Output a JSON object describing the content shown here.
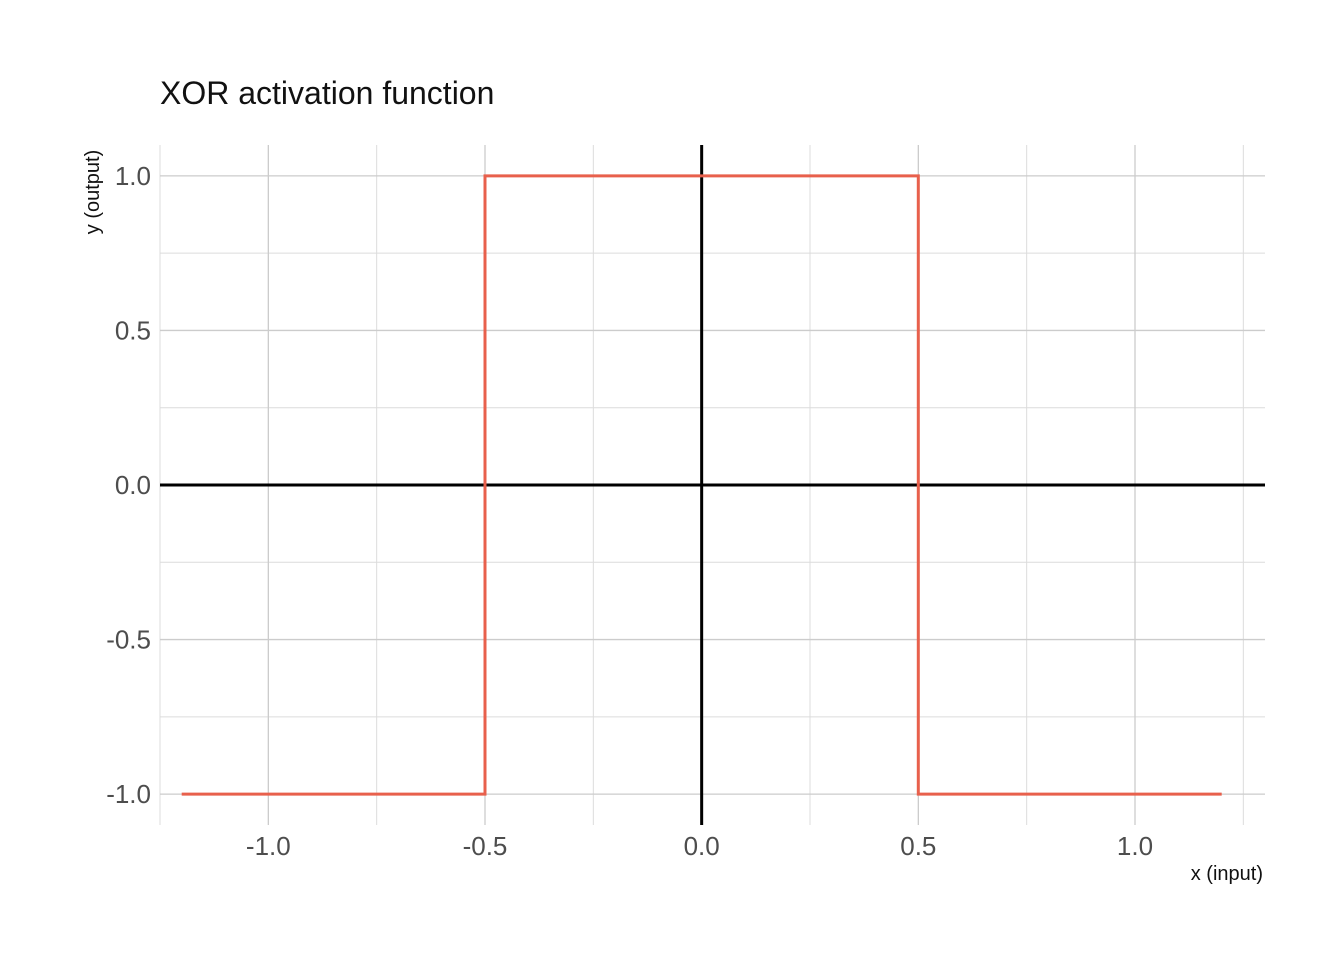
{
  "chart_data": {
    "type": "line",
    "title": "XOR activation function",
    "xlabel": "x (input)",
    "ylabel": "y (output)",
    "xlim": [
      -1.25,
      1.3
    ],
    "ylim": [
      -1.1,
      1.1
    ],
    "x_ticks": [
      -1.0,
      -0.5,
      0.0,
      0.5,
      1.0
    ],
    "y_ticks": [
      -1.0,
      -0.5,
      0.0,
      0.5,
      1.0
    ],
    "x_tick_labels": [
      "-1.0",
      "-0.5",
      "0.0",
      "0.5",
      "1.0"
    ],
    "y_tick_labels": [
      "-1.0",
      "-0.5",
      "0.0",
      "0.5",
      "1.0"
    ],
    "grid": true,
    "reference_lines": {
      "x": 0,
      "y": 0,
      "color": "#000000"
    },
    "series": [
      {
        "color": "#e8604c",
        "step": true,
        "x": [
          -1.2,
          -0.5,
          -0.5,
          0.5,
          0.5,
          1.2
        ],
        "y": [
          -1,
          -1,
          1,
          1,
          -1,
          -1
        ]
      }
    ]
  }
}
